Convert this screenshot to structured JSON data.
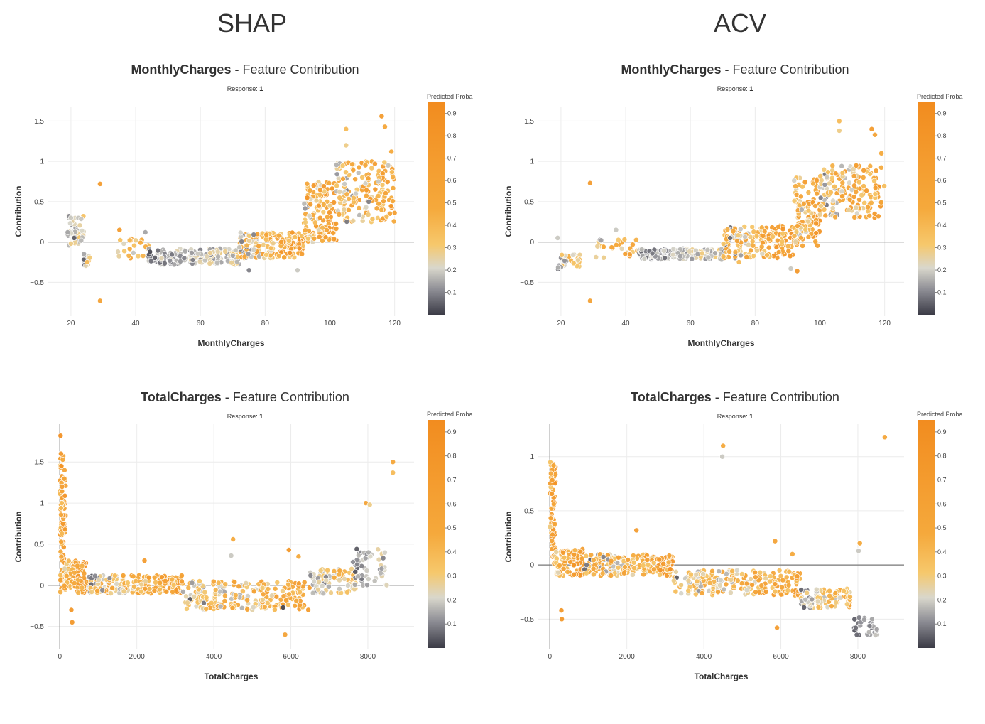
{
  "columns": [
    {
      "title": "SHAP"
    },
    {
      "title": "ACV"
    }
  ],
  "colorbar": {
    "title": "Predicted Proba",
    "ticks": [
      "0.9",
      "0.8",
      "0.7",
      "0.6",
      "0.5",
      "0.4",
      "0.3",
      "0.2",
      "0.1"
    ],
    "colors": [
      "#f28c1f",
      "#f5a93c",
      "#f6c86c",
      "#d9d7cc",
      "#8f8f96",
      "#3b3b46"
    ]
  },
  "chart_data": [
    {
      "panel": "SHAP MonthlyCharges",
      "type": "scatter",
      "title_feature": "MonthlyCharges",
      "title_suffix": " - Feature Contribution",
      "subtitle_label": "Response: ",
      "subtitle_value": "1",
      "xlabel": "MonthlyCharges",
      "ylabel": "Contribution",
      "xlim": [
        13,
        126
      ],
      "ylim": [
        -0.92,
        1.68
      ],
      "xticks": [
        20,
        40,
        60,
        80,
        100,
        120
      ],
      "yticks": [
        -0.5,
        0,
        0.5,
        1,
        1.5
      ],
      "ytick_labels": [
        "−0.5",
        "0",
        "0.5",
        "1",
        "1.5"
      ],
      "points": [
        {
          "x": 20,
          "y": 0.3,
          "c": 0.2
        },
        {
          "x": 19,
          "y": 0.12,
          "c": 0.15
        },
        {
          "x": 21,
          "y": 0.05,
          "c": 0.05
        },
        {
          "x": 20,
          "y": -0.02,
          "c": 0.3
        },
        {
          "x": 24,
          "y": -0.22,
          "c": 0.05
        },
        {
          "x": 25,
          "y": -0.25,
          "c": 0.4
        },
        {
          "x": 29,
          "y": 0.72,
          "c": 0.7
        },
        {
          "x": 29,
          "y": -0.73,
          "c": 0.6
        },
        {
          "x": 35,
          "y": 0.15,
          "c": 0.7
        },
        {
          "x": 40,
          "y": 0.02,
          "c": 0.3
        },
        {
          "x": 43,
          "y": 0.12,
          "c": 0.15
        },
        {
          "x": 48,
          "y": -0.2,
          "c": 0.25
        },
        {
          "x": 55,
          "y": -0.2,
          "c": 0.1
        },
        {
          "x": 62,
          "y": -0.18,
          "c": 0.25
        },
        {
          "x": 70,
          "y": -0.17,
          "c": 0.15
        },
        {
          "x": 75,
          "y": -0.35,
          "c": 0.1
        },
        {
          "x": 78,
          "y": -0.05,
          "c": 0.6
        },
        {
          "x": 85,
          "y": 0.0,
          "c": 0.7
        },
        {
          "x": 90,
          "y": -0.35,
          "c": 0.2
        },
        {
          "x": 93,
          "y": 0.55,
          "c": 0.85
        },
        {
          "x": 95,
          "y": 0.7,
          "c": 0.75
        },
        {
          "x": 97,
          "y": 0.3,
          "c": 0.7
        },
        {
          "x": 100,
          "y": 0.45,
          "c": 0.3
        },
        {
          "x": 103,
          "y": 0.55,
          "c": 0.4
        },
        {
          "x": 105,
          "y": 1.4,
          "c": 0.4
        },
        {
          "x": 105,
          "y": 1.2,
          "c": 0.3
        },
        {
          "x": 108,
          "y": 0.6,
          "c": 0.2
        },
        {
          "x": 110,
          "y": 0.8,
          "c": 0.35
        },
        {
          "x": 112,
          "y": 0.5,
          "c": 0.1
        },
        {
          "x": 115,
          "y": 0.75,
          "c": 0.2
        },
        {
          "x": 116,
          "y": 1.56,
          "c": 0.75
        },
        {
          "x": 117,
          "y": 1.43,
          "c": 0.55
        },
        {
          "x": 119,
          "y": 1.12,
          "c": 0.5
        },
        {
          "x": 118,
          "y": 0.95,
          "c": 0.2
        }
      ],
      "clusters": [
        {
          "x0": 19,
          "x1": 24,
          "y0": -0.05,
          "y1": 0.35,
          "n": 40,
          "cmin": 0.05,
          "cmax": 0.4
        },
        {
          "x0": 24,
          "x1": 26,
          "y0": -0.3,
          "y1": -0.1,
          "n": 14,
          "cmin": 0.02,
          "cmax": 0.5
        },
        {
          "x0": 34,
          "x1": 44,
          "y0": -0.22,
          "y1": 0.05,
          "n": 22,
          "cmin": 0.02,
          "cmax": 0.8
        },
        {
          "x0": 44,
          "x1": 72,
          "y0": -0.28,
          "y1": -0.08,
          "n": 180,
          "cmin": 0.02,
          "cmax": 0.35
        },
        {
          "x0": 72,
          "x1": 92,
          "y0": -0.2,
          "y1": 0.12,
          "n": 170,
          "cmin": 0.02,
          "cmax": 0.95
        },
        {
          "x0": 92,
          "x1": 102,
          "y0": 0.0,
          "y1": 0.75,
          "n": 130,
          "cmin": 0.05,
          "cmax": 0.95
        },
        {
          "x0": 102,
          "x1": 120,
          "y0": 0.25,
          "y1": 1.0,
          "n": 160,
          "cmin": 0.02,
          "cmax": 0.9
        }
      ]
    },
    {
      "panel": "ACV MonthlyCharges",
      "type": "scatter",
      "title_feature": "MonthlyCharges",
      "title_suffix": " - Feature Contribution",
      "subtitle_label": "Response: ",
      "subtitle_value": "1",
      "xlabel": "MonthlyCharges",
      "ylabel": "Contribution",
      "xlim": [
        13,
        126
      ],
      "ylim": [
        -0.92,
        1.68
      ],
      "xticks": [
        20,
        40,
        60,
        80,
        100,
        120
      ],
      "yticks": [
        -0.5,
        0,
        0.5,
        1,
        1.5
      ],
      "ytick_labels": [
        "−0.5",
        "0",
        "0.5",
        "1",
        "1.5"
      ],
      "points": [
        {
          "x": 29,
          "y": 0.73,
          "c": 0.7
        },
        {
          "x": 29,
          "y": -0.73,
          "c": 0.6
        },
        {
          "x": 37,
          "y": 0.15,
          "c": 0.2
        },
        {
          "x": 19,
          "y": 0.05,
          "c": 0.2
        },
        {
          "x": 106,
          "y": 1.5,
          "c": 0.4
        },
        {
          "x": 106,
          "y": 1.38,
          "c": 0.3
        },
        {
          "x": 116,
          "y": 1.4,
          "c": 0.75
        },
        {
          "x": 117,
          "y": 1.33,
          "c": 0.6
        },
        {
          "x": 119,
          "y": 1.1,
          "c": 0.5
        },
        {
          "x": 91,
          "y": -0.33,
          "c": 0.2
        },
        {
          "x": 93,
          "y": -0.36,
          "c": 0.8
        },
        {
          "x": 75,
          "y": -0.25,
          "c": 0.4
        }
      ],
      "clusters": [
        {
          "x0": 19,
          "x1": 26,
          "y0": -0.35,
          "y1": -0.15,
          "n": 30,
          "cmin": 0.02,
          "cmax": 0.6
        },
        {
          "x0": 30,
          "x1": 44,
          "y0": -0.2,
          "y1": 0.05,
          "n": 28,
          "cmin": 0.02,
          "cmax": 0.8
        },
        {
          "x0": 44,
          "x1": 70,
          "y0": -0.22,
          "y1": -0.08,
          "n": 170,
          "cmin": 0.02,
          "cmax": 0.35
        },
        {
          "x0": 70,
          "x1": 92,
          "y0": -0.2,
          "y1": 0.2,
          "n": 170,
          "cmin": 0.02,
          "cmax": 0.95
        },
        {
          "x0": 92,
          "x1": 100,
          "y0": -0.05,
          "y1": 0.8,
          "n": 110,
          "cmin": 0.05,
          "cmax": 0.95
        },
        {
          "x0": 100,
          "x1": 120,
          "y0": 0.3,
          "y1": 0.95,
          "n": 160,
          "cmin": 0.02,
          "cmax": 0.9
        }
      ]
    },
    {
      "panel": "SHAP TotalCharges",
      "type": "scatter",
      "title_feature": "TotalCharges",
      "title_suffix": " - Feature Contribution",
      "subtitle_label": "Response: ",
      "subtitle_value": "1",
      "xlabel": "TotalCharges",
      "ylabel": "Contribution",
      "xlim": [
        -300,
        9200
      ],
      "ylim": [
        -0.78,
        1.96
      ],
      "xticks": [
        0,
        2000,
        4000,
        6000,
        8000
      ],
      "yticks": [
        -0.5,
        0,
        0.5,
        1,
        1.5
      ],
      "ytick_labels": [
        "−0.5",
        "0",
        "0.5",
        "1",
        "1.5"
      ],
      "points": [
        {
          "x": 20,
          "y": 1.82,
          "c": 0.9
        },
        {
          "x": 30,
          "y": 1.6,
          "c": 0.8
        },
        {
          "x": 40,
          "y": 1.45,
          "c": 0.85
        },
        {
          "x": 60,
          "y": 1.2,
          "c": 0.7
        },
        {
          "x": 50,
          "y": 1.0,
          "c": 0.4
        },
        {
          "x": 300,
          "y": -0.3,
          "c": 0.8
        },
        {
          "x": 320,
          "y": -0.45,
          "c": 0.8
        },
        {
          "x": 2200,
          "y": 0.3,
          "c": 0.7
        },
        {
          "x": 4500,
          "y": 0.56,
          "c": 0.5
        },
        {
          "x": 4450,
          "y": 0.36,
          "c": 0.2
        },
        {
          "x": 5850,
          "y": -0.6,
          "c": 0.6
        },
        {
          "x": 5950,
          "y": 0.43,
          "c": 0.8
        },
        {
          "x": 7950,
          "y": 1.0,
          "c": 0.6
        },
        {
          "x": 8050,
          "y": 0.98,
          "c": 0.3
        },
        {
          "x": 8650,
          "y": 1.5,
          "c": 0.55
        },
        {
          "x": 8650,
          "y": 1.37,
          "c": 0.4
        },
        {
          "x": 6200,
          "y": 0.35,
          "c": 0.5
        },
        {
          "x": 5800,
          "y": -0.27,
          "c": 0.02
        },
        {
          "x": 8400,
          "y": 0.33,
          "c": 0.1
        }
      ],
      "clusters": [
        {
          "x0": 0,
          "x1": 150,
          "y0": -0.1,
          "y1": 1.6,
          "n": 80,
          "cmin": 0.3,
          "cmax": 0.95
        },
        {
          "x0": 100,
          "x1": 700,
          "y0": -0.1,
          "y1": 0.3,
          "n": 90,
          "cmin": 0.2,
          "cmax": 0.95
        },
        {
          "x0": 700,
          "x1": 3200,
          "y0": -0.1,
          "y1": 0.12,
          "n": 220,
          "cmin": 0.02,
          "cmax": 0.9
        },
        {
          "x0": 3200,
          "x1": 6500,
          "y0": -0.3,
          "y1": 0.05,
          "n": 220,
          "cmin": 0.02,
          "cmax": 0.8
        },
        {
          "x0": 6500,
          "x1": 7700,
          "y0": -0.1,
          "y1": 0.2,
          "n": 90,
          "cmin": 0.02,
          "cmax": 0.6
        },
        {
          "x0": 7600,
          "x1": 8500,
          "y0": 0.0,
          "y1": 0.45,
          "n": 50,
          "cmin": 0.02,
          "cmax": 0.3
        }
      ]
    },
    {
      "panel": "ACV TotalCharges",
      "type": "scatter",
      "title_feature": "TotalCharges",
      "title_suffix": " - Feature Contribution",
      "subtitle_label": "Response: ",
      "subtitle_value": "1",
      "xlabel": "TotalCharges",
      "ylabel": "Contribution",
      "xlim": [
        -300,
        9200
      ],
      "ylim": [
        -0.78,
        1.3
      ],
      "xticks": [
        0,
        2000,
        4000,
        6000,
        8000
      ],
      "yticks": [
        -0.5,
        0,
        0.5,
        1
      ],
      "ytick_labels": [
        "−0.5",
        "0",
        "0.5",
        "1"
      ],
      "points": [
        {
          "x": 4500,
          "y": 1.1,
          "c": 0.5
        },
        {
          "x": 4480,
          "y": 1.0,
          "c": 0.2
        },
        {
          "x": 8700,
          "y": 1.18,
          "c": 0.55
        },
        {
          "x": 8050,
          "y": 0.2,
          "c": 0.5
        },
        {
          "x": 8020,
          "y": 0.13,
          "c": 0.2
        },
        {
          "x": 2250,
          "y": 0.32,
          "c": 0.7
        },
        {
          "x": 300,
          "y": -0.42,
          "c": 0.8
        },
        {
          "x": 310,
          "y": -0.5,
          "c": 0.8
        },
        {
          "x": 5900,
          "y": -0.58,
          "c": 0.7
        },
        {
          "x": 5850,
          "y": 0.22,
          "c": 0.6
        },
        {
          "x": 6300,
          "y": 0.1,
          "c": 0.5
        }
      ],
      "clusters": [
        {
          "x0": 0,
          "x1": 150,
          "y0": 0.0,
          "y1": 0.95,
          "n": 70,
          "cmin": 0.3,
          "cmax": 0.95
        },
        {
          "x0": 100,
          "x1": 900,
          "y0": -0.1,
          "y1": 0.15,
          "n": 90,
          "cmin": 0.2,
          "cmax": 0.95
        },
        {
          "x0": 900,
          "x1": 3200,
          "y0": -0.1,
          "y1": 0.1,
          "n": 200,
          "cmin": 0.02,
          "cmax": 0.9
        },
        {
          "x0": 3200,
          "x1": 6500,
          "y0": -0.28,
          "y1": -0.05,
          "n": 220,
          "cmin": 0.02,
          "cmax": 0.8
        },
        {
          "x0": 6500,
          "x1": 7800,
          "y0": -0.4,
          "y1": -0.22,
          "n": 90,
          "cmin": 0.02,
          "cmax": 0.6
        },
        {
          "x0": 7800,
          "x1": 8500,
          "y0": -0.65,
          "y1": -0.48,
          "n": 30,
          "cmin": 0.02,
          "cmax": 0.2
        }
      ]
    }
  ]
}
